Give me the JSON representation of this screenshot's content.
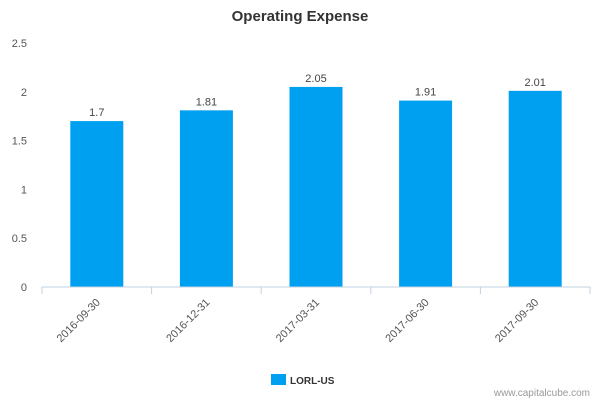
{
  "chart_data": {
    "type": "bar",
    "title": "Operating Expense",
    "categories": [
      "2016-09-30",
      "2016-12-31",
      "2017-03-31",
      "2017-06-30",
      "2017-09-30"
    ],
    "series": [
      {
        "name": "LORL-US",
        "values": [
          1.7,
          1.81,
          2.05,
          1.91,
          2.01
        ],
        "color": "#00a0f0"
      }
    ],
    "data_labels": [
      "1.7",
      "1.81",
      "2.05",
      "1.91",
      "2.01"
    ],
    "yticks": [
      "0",
      "0.5",
      "1",
      "1.5",
      "2",
      "2.5"
    ],
    "ylim": [
      0,
      2.5
    ],
    "xlabel": "",
    "ylabel": "",
    "legend_position": "bottom-center"
  },
  "credit": "www.capitalcube.com",
  "colors": {
    "axis": "#c0d0e0",
    "bar": "#00a0f0"
  }
}
